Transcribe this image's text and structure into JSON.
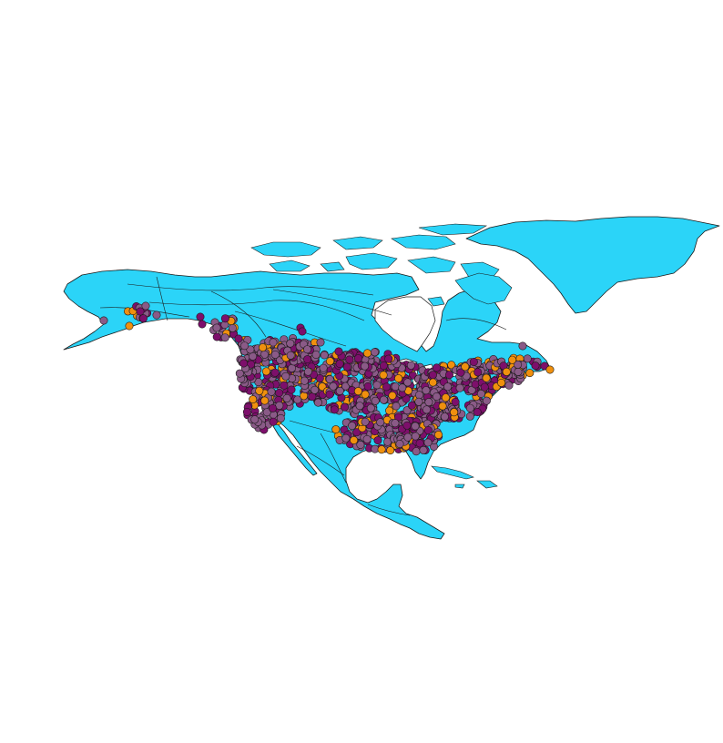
{
  "map": {
    "colors": {
      "land": "#2bd4f8",
      "outline": "#1a1a1a",
      "background": "#ffffff"
    },
    "series": [
      {
        "color": "#8a5a87",
        "share": 0.52
      },
      {
        "color": "#7d0f6b",
        "share": 0.33
      },
      {
        "color": "#f0900e",
        "share": 0.15
      }
    ]
  }
}
